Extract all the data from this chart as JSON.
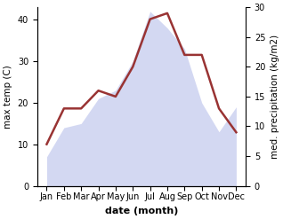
{
  "months": [
    "Jan",
    "Feb",
    "Mar",
    "Apr",
    "May",
    "Jun",
    "Jul",
    "Aug",
    "Sep",
    "Oct",
    "Nov",
    "Dec"
  ],
  "max_temp": [
    7,
    14,
    15,
    21,
    23,
    30,
    42,
    38,
    33,
    20,
    13,
    19
  ],
  "precipitation": [
    7,
    13,
    13,
    16,
    15,
    20,
    28,
    29,
    22,
    22,
    13,
    9
  ],
  "fill_color": "#b0b8e8",
  "fill_alpha": 0.55,
  "precip_color": "#993333",
  "precip_linewidth": 1.8,
  "ylabel_left": "max temp (C)",
  "ylabel_right": "med. precipitation (kg/m2)",
  "xlabel": "date (month)",
  "ylim_left": [
    0,
    43
  ],
  "ylim_right": [
    0,
    30
  ],
  "yticks_left": [
    0,
    10,
    20,
    30,
    40
  ],
  "yticks_right": [
    0,
    5,
    10,
    15,
    20,
    25,
    30
  ],
  "ylabel_fontsize": 7.5,
  "xlabel_fontsize": 8,
  "tick_fontsize": 7,
  "background_color": "#ffffff"
}
